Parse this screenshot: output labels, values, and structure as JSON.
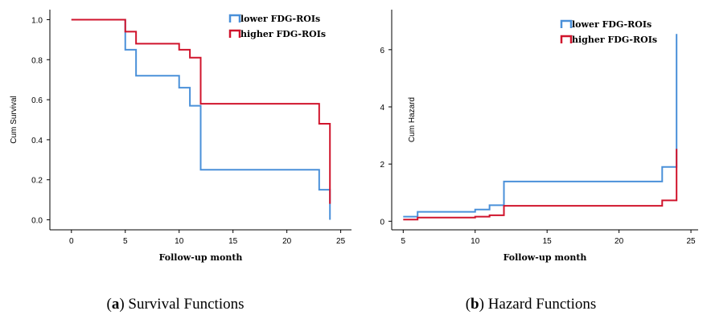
{
  "chart_data": [
    {
      "type": "line",
      "step": true,
      "caption_letter": "a",
      "caption_text": " Survival Functions",
      "caption_open": "(",
      "caption_close": ")",
      "xlabel": "Follow-up month",
      "ylabel": "Cum Survival",
      "xlim": [
        -2,
        26
      ],
      "ylim": [
        -0.05,
        1.05
      ],
      "xticks": [
        0,
        5,
        10,
        15,
        20,
        25
      ],
      "yticks": [
        "0.0",
        "0.2",
        "0.4",
        "0.6",
        "0.8",
        "1.0"
      ],
      "grid": false,
      "legend_position": "top-right",
      "series": [
        {
          "name": "lower FDG-ROIs",
          "color": "#4a90d9",
          "x": [
            0,
            5,
            6,
            10,
            11,
            12,
            23,
            24,
            24
          ],
          "y": [
            1.0,
            0.85,
            0.72,
            0.66,
            0.57,
            0.25,
            0.15,
            0.0,
            0.07
          ]
        },
        {
          "name": "higher FDG-ROIs",
          "color": "#d0142c",
          "x": [
            0,
            5,
            6,
            10,
            11,
            12,
            23,
            24
          ],
          "y": [
            1.0,
            0.94,
            0.88,
            0.85,
            0.81,
            0.58,
            0.48,
            0.08
          ]
        }
      ]
    },
    {
      "type": "line",
      "step": true,
      "caption_letter": "b",
      "caption_text": " Hazard Functions",
      "caption_open": "(",
      "caption_close": ")",
      "xlabel": "Follow-up month",
      "ylabel": "Cum Hazard",
      "xlim": [
        4.2,
        25.5
      ],
      "ylim": [
        -0.3,
        7.4
      ],
      "xticks": [
        5,
        10,
        15,
        20,
        25
      ],
      "yticks": [
        "0",
        "2",
        "4",
        "6"
      ],
      "grid": false,
      "legend_position": "top-right",
      "series": [
        {
          "name": "lower FDG-ROIs",
          "color": "#4a90d9",
          "x": [
            5,
            6,
            10,
            11,
            12,
            23,
            24
          ],
          "y": [
            0.16,
            0.33,
            0.41,
            0.56,
            1.39,
            1.9,
            6.55
          ]
        },
        {
          "name": "higher FDG-ROIs",
          "color": "#d0142c",
          "x": [
            5,
            6,
            10,
            11,
            12,
            23,
            24
          ],
          "y": [
            0.06,
            0.13,
            0.16,
            0.21,
            0.54,
            0.73,
            2.53
          ]
        }
      ]
    }
  ]
}
